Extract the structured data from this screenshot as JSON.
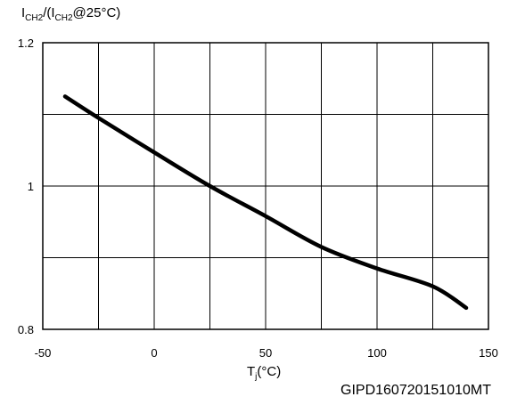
{
  "chart_data": {
    "type": "line",
    "title": "",
    "ylabel": {
      "main": "I",
      "sub1": "CH2",
      "mid": "/(I",
      "sub2": "CH2",
      "tail": "@25°C)"
    },
    "xlabel": {
      "main": "T",
      "sub": "j",
      "tail": "(°C)"
    },
    "xlim": [
      -50,
      150
    ],
    "ylim": [
      0.8,
      1.2
    ],
    "x_ticks": [
      -50,
      0,
      50,
      100,
      150
    ],
    "x_tick_labels": [
      "-50",
      "0",
      "50",
      "100",
      "150"
    ],
    "y_ticks": [
      0.8,
      1.0,
      1.2
    ],
    "y_tick_labels": [
      "0.8",
      "1",
      "1.2"
    ],
    "grid": true,
    "series": [
      {
        "color": "#000000",
        "x": [
          -40,
          -25,
          0,
          25,
          50,
          75,
          100,
          125,
          140
        ],
        "y": [
          1.125,
          1.095,
          1.047,
          1.0,
          0.958,
          0.915,
          0.885,
          0.86,
          0.83
        ]
      }
    ]
  },
  "figure_id": "GIPD160720151010MT"
}
